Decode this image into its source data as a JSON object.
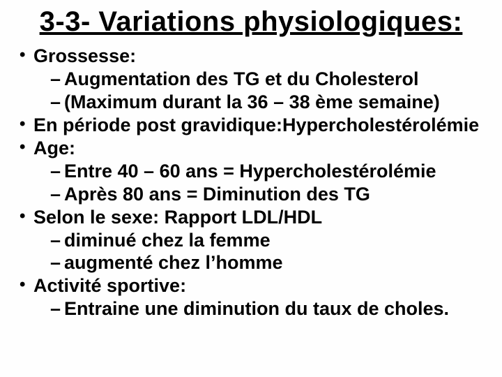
{
  "title": "3-3- Variations physiologiques:",
  "bullets": [
    {
      "text": "Grossesse:",
      "sub": [
        "Augmentation des TG et du Cholesterol",
        "(Maximum durant la 36 – 38 ème semaine)"
      ]
    },
    {
      "text": "En période post gravidique:Hypercholestérolémie",
      "sub": []
    },
    {
      "text": "Age:",
      "sub": [
        "Entre 40 – 60 ans = Hypercholestérolémie",
        "Après 80 ans = Diminution des TG"
      ]
    },
    {
      "text": "Selon le sexe: Rapport LDL/HDL",
      "sub": [
        "diminué chez la femme",
        "augmenté chez l’homme"
      ]
    },
    {
      "text": "Activité sportive:",
      "sub": [
        "Entraine une diminution du taux de choles."
      ]
    }
  ],
  "style": {
    "background_color": "#fefefe",
    "text_color": "#000000",
    "title_fontsize": 40,
    "body_fontsize": 27,
    "font_family": "Comic Sans MS"
  }
}
